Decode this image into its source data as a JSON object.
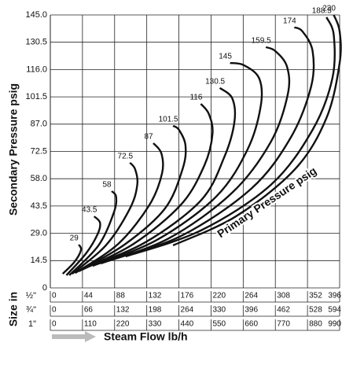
{
  "chart_data": {
    "type": "line",
    "y_label": "Secondary Pressure psig",
    "x_label": "Steam Flow lb/h",
    "size_label": "Size in",
    "annotation": "Primary Pressure psig",
    "ylim": [
      0,
      145
    ],
    "yticks": [
      0,
      14.5,
      {
        "value": 29,
        "label": "29.0"
      },
      43.5,
      {
        "value": 58,
        "label": "58.0"
      },
      72.5,
      {
        "value": 87,
        "label": "87.0"
      },
      101.5,
      {
        "value": 116,
        "label": "116.0"
      },
      130.5,
      {
        "value": 145,
        "label": "145.0"
      }
    ],
    "xlim": [
      0,
      396
    ],
    "x_axes": [
      {
        "label": "½\"",
        "xlim": [
          0,
          396
        ],
        "xticks": [
          0,
          44,
          88,
          132,
          176,
          220,
          264,
          308,
          352,
          396
        ]
      },
      {
        "label": "¾\"",
        "xlim": [
          0,
          594
        ],
        "xticks": [
          0,
          66,
          132,
          198,
          264,
          330,
          396,
          462,
          528,
          594
        ]
      },
      {
        "label": "1\"",
        "xlim": [
          0,
          990
        ],
        "xticks": [
          0,
          110,
          220,
          330,
          440,
          550,
          660,
          770,
          880,
          990
        ]
      }
    ],
    "grid": true,
    "color": "#111111",
    "series": [
      {
        "name": "29",
        "x": [
          17,
          33,
          42,
          39
        ],
        "values": [
          7.5,
          13.8,
          20.1,
          23
        ]
      },
      {
        "name": "43.5",
        "x": [
          22,
          49,
          65,
          68,
          60
        ],
        "values": [
          6.7,
          18.4,
          28.8,
          34.7,
          38
        ]
      },
      {
        "name": "58",
        "x": [
          26,
          66,
          87,
          90,
          84
        ],
        "values": [
          6.7,
          22.6,
          40.1,
          48.5,
          51.4
        ]
      },
      {
        "name": "72.5",
        "x": [
          30,
          76,
          109,
          119,
          116,
          109
        ],
        "values": [
          7.5,
          22.6,
          42.2,
          54.8,
          63.1,
          66.5
        ]
      },
      {
        "name": "87",
        "x": [
          34,
          93,
          136,
          153,
          152,
          141
        ],
        "values": [
          7.9,
          23.4,
          44.3,
          61,
          71.5,
          76.9
        ]
      },
      {
        "name": "101.5",
        "x": [
          39,
          103,
          157,
          181,
          185,
          176,
          168
        ],
        "values": [
          8.8,
          23.4,
          42.2,
          63.1,
          75.7,
          84,
          86.1
        ]
      },
      {
        "name": "116",
        "x": [
          43,
          114,
          179,
          211,
          222,
          217,
          206
        ],
        "values": [
          9.6,
          23.4,
          44.3,
          65.2,
          81.9,
          92.4,
          97.8
        ]
      },
      {
        "name": "130.5",
        "x": [
          49,
          130,
          206,
          238,
          252,
          249,
          232
        ],
        "values": [
          10.9,
          24.2,
          46.4,
          69.4,
          88.2,
          100.7,
          106.2
        ]
      },
      {
        "name": "145",
        "x": [
          58,
          146,
          227,
          270,
          288,
          286,
          265,
          246
        ],
        "values": [
          11.7,
          25.5,
          48.5,
          73.6,
          96.6,
          111.2,
          118.3,
          119.5
        ]
      },
      {
        "name": "159.5",
        "x": [
          69,
          162,
          249,
          302,
          325,
          324,
          308,
          295
        ],
        "values": [
          13,
          26.3,
          50.6,
          77.7,
          102.8,
          117.5,
          125.8,
          127.9
        ]
      },
      {
        "name": "174",
        "x": [
          82,
          179,
          275,
          329,
          357,
          359,
          345,
          334
        ],
        "values": [
          15,
          27.6,
          52.7,
          79.8,
          107,
          125.8,
          136.3,
          138.4
        ]
      },
      {
        "name": "188.5",
        "x": [
          103,
          206,
          302,
          359,
          386,
          388,
          378
        ],
        "values": [
          16.7,
          30.5,
          54.8,
          84,
          111.2,
          134.2,
          143.8
        ]
      },
      {
        "name": "230",
        "x": [
          168,
          254,
          335,
          378,
          396,
          396,
          388
        ],
        "values": [
          22.6,
          38,
          63.1,
          90.3,
          119.5,
          136.3,
          145
        ]
      }
    ]
  }
}
